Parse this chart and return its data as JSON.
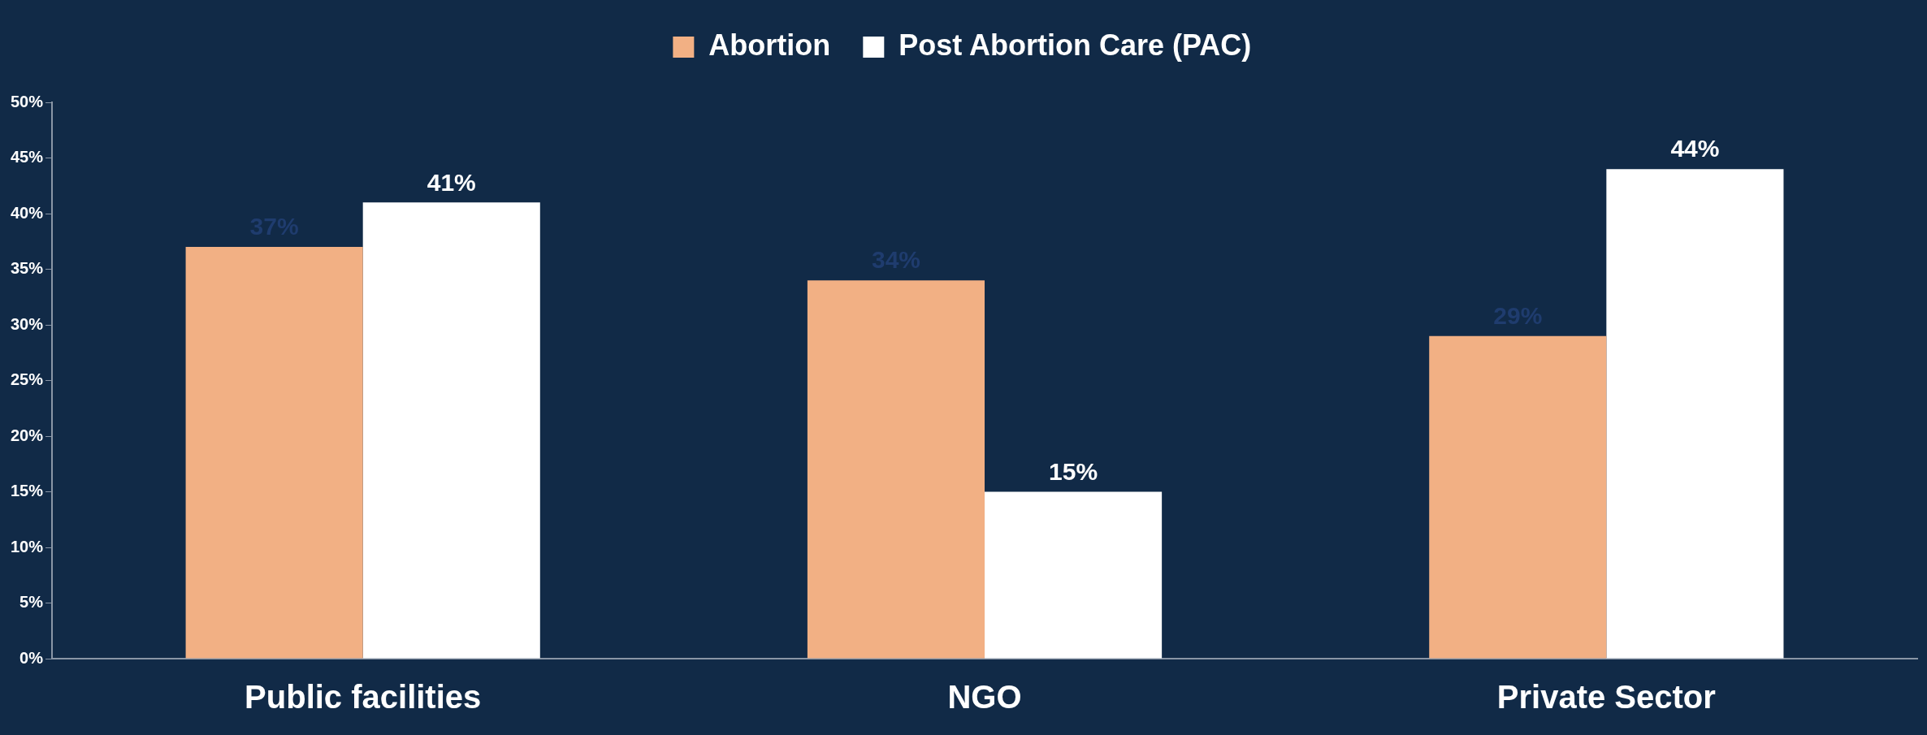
{
  "chart_data": {
    "type": "bar",
    "categories": [
      "Public facilities",
      "NGO",
      "Private Sector"
    ],
    "series": [
      {
        "name": "Abortion",
        "color": "#f2b084",
        "values": [
          37,
          34,
          29
        ],
        "value_labels": [
          "37%",
          "34%",
          "29%"
        ]
      },
      {
        "name": "Post Abortion Care (PAC)",
        "color": "#ffffff",
        "values": [
          41,
          15,
          44
        ],
        "value_labels": [
          "41%",
          "15%",
          "44%"
        ]
      }
    ],
    "ylim": [
      0,
      50
    ],
    "yticks": [
      {
        "value": 0,
        "label": "0%"
      },
      {
        "value": 5,
        "label": "5%"
      },
      {
        "value": 10,
        "label": "10%"
      },
      {
        "value": 15,
        "label": "15%"
      },
      {
        "value": 20,
        "label": "20%"
      },
      {
        "value": 25,
        "label": "25%"
      },
      {
        "value": 30,
        "label": "30%"
      },
      {
        "value": 35,
        "label": "35%"
      },
      {
        "value": 40,
        "label": "40%"
      },
      {
        "value": 45,
        "label": "45%"
      },
      {
        "value": 50,
        "label": "50%"
      }
    ],
    "grid": false,
    "legend": "top"
  }
}
